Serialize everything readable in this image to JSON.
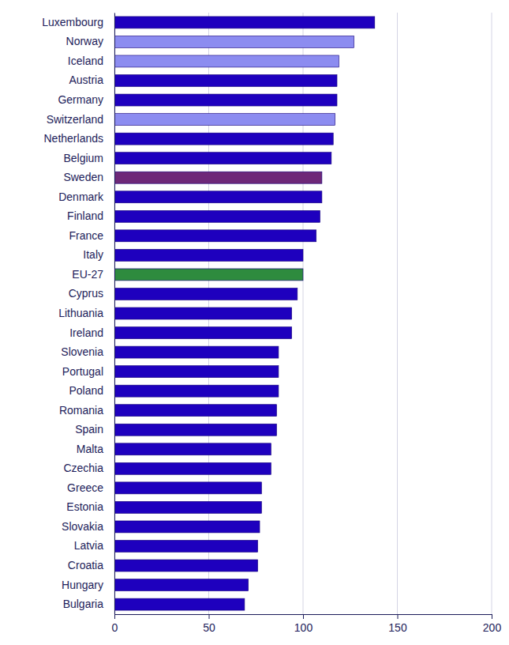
{
  "chart_data": {
    "type": "bar",
    "orientation": "horizontal",
    "categories": [
      "Luxembourg",
      "Norway",
      "Iceland",
      "Austria",
      "Germany",
      "Switzerland",
      "Netherlands",
      "Belgium",
      "Sweden",
      "Denmark",
      "Finland",
      "France",
      "Italy",
      "EU-27",
      "Cyprus",
      "Lithuania",
      "Ireland",
      "Slovenia",
      "Portugal",
      "Poland",
      "Romania",
      "Spain",
      "Malta",
      "Czechia",
      "Greece",
      "Estonia",
      "Slovakia",
      "Latvia",
      "Croatia",
      "Hungary",
      "Bulgaria"
    ],
    "values": [
      138,
      127,
      119,
      118,
      118,
      117,
      116,
      115,
      110,
      110,
      109,
      107,
      100,
      100,
      97,
      94,
      94,
      87,
      87,
      87,
      86,
      86,
      83,
      83,
      78,
      78,
      77,
      76,
      76,
      71,
      69
    ],
    "colors": [
      "#1e00be",
      "#8c8cf0",
      "#8c8cf0",
      "#1e00be",
      "#1e00be",
      "#8c8cf0",
      "#1e00be",
      "#1e00be",
      "#6e2878",
      "#1e00be",
      "#1e00be",
      "#1e00be",
      "#1e00be",
      "#2e8b3e",
      "#1e00be",
      "#1e00be",
      "#1e00be",
      "#1e00be",
      "#1e00be",
      "#1e00be",
      "#1e00be",
      "#1e00be",
      "#1e00be",
      "#1e00be",
      "#1e00be",
      "#1e00be",
      "#1e00be",
      "#1e00be",
      "#1e00be",
      "#1e00be",
      "#1e00be"
    ],
    "xlim": [
      0,
      200
    ],
    "xticks": [
      0,
      50,
      100,
      150,
      200
    ],
    "grid": true
  }
}
